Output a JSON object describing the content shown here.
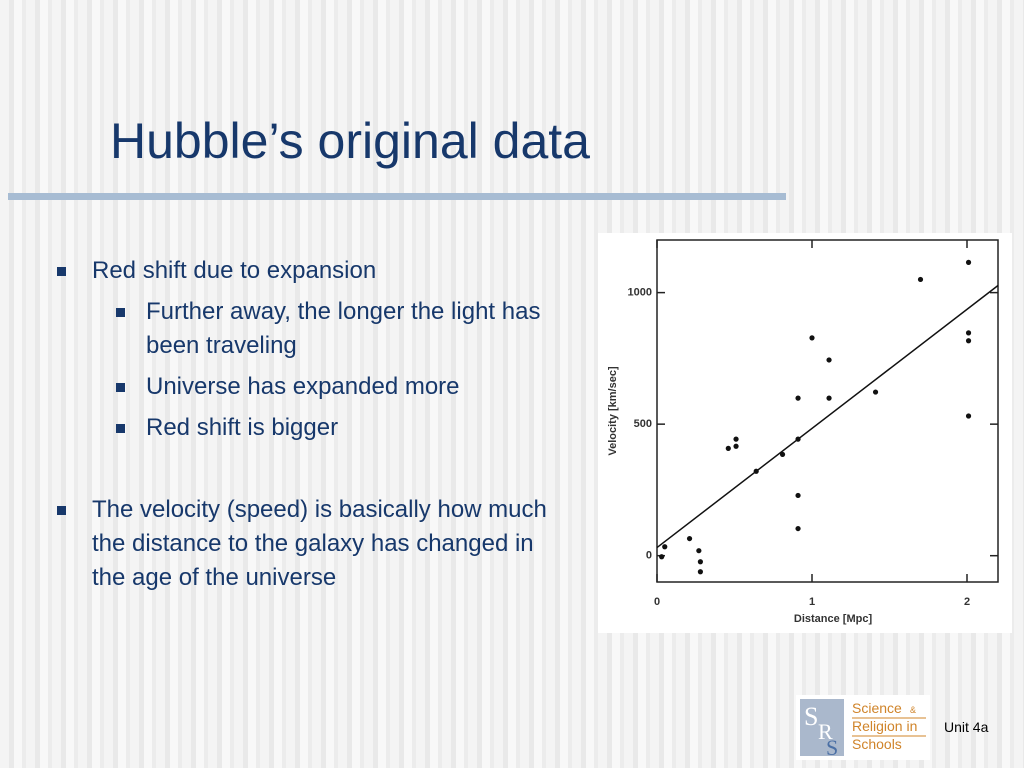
{
  "title": "Hubble’s original data",
  "bullets": [
    {
      "text": "Red shift due to expansion",
      "sub": [
        "Further away, the longer the light has been traveling",
        "Universe has expanded more",
        "Red shift is bigger"
      ]
    },
    {
      "text": "The velocity (speed) is basically how much the distance to the galaxy has changed in the age of the universe"
    }
  ],
  "chart_data": {
    "type": "scatter",
    "x_label": "Distance [Mpc]",
    "y_label": "Velocity [km/sec]",
    "xlim": [
      0,
      2.2
    ],
    "ylim": [
      -100,
      1200
    ],
    "xticks": [
      0,
      1,
      2
    ],
    "yticks": [
      0,
      500,
      1000
    ],
    "color": "#111111",
    "x": [
      0.05,
      0.03,
      0.21,
      0.27,
      0.28,
      0.28,
      0.46,
      0.51,
      0.51,
      0.64,
      0.81,
      0.91,
      0.91,
      0.91,
      0.91,
      1.0,
      1.11,
      1.11,
      1.41,
      1.7,
      2.01,
      2.01,
      2.01,
      2.01
    ],
    "values": [
      34,
      -4,
      65,
      19,
      -23,
      -61,
      408,
      443,
      416,
      321,
      385,
      443,
      599,
      229,
      103,
      828,
      744,
      599,
      622,
      1050,
      1115,
      847,
      817,
      531
    ],
    "fit_line": {
      "x": [
        0,
        2.2
      ],
      "y": [
        31,
        1027
      ]
    }
  },
  "footer": {
    "logo_letters": [
      "S",
      "R",
      "S"
    ],
    "logo_lines": [
      "Science",
      "&",
      "Religion in",
      "Schools"
    ],
    "unit": "Unit 4a"
  }
}
